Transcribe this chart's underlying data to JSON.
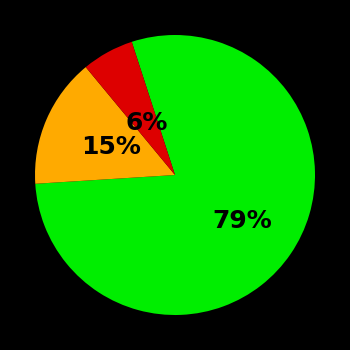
{
  "slices": [
    79,
    15,
    6
  ],
  "colors": [
    "#00ee00",
    "#ffaa00",
    "#dd0000"
  ],
  "labels": [
    "79%",
    "15%",
    "6%"
  ],
  "background_color": "#000000",
  "startangle": -252,
  "counterclock": false,
  "label_fontsize": 18,
  "label_fontweight": "bold",
  "label_color": "#000000",
  "label_radii": [
    0.58,
    0.5,
    0.42
  ]
}
